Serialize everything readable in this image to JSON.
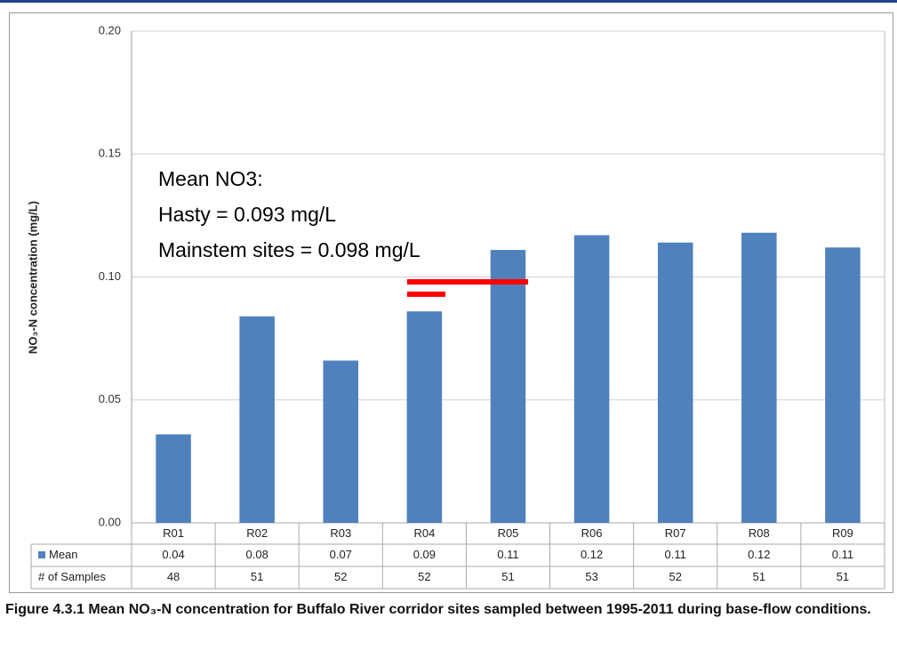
{
  "chart_data": {
    "type": "bar",
    "y_label": "NO₃-N concentration (mg/L)",
    "categories": [
      "R01",
      "R02",
      "R03",
      "R04",
      "R05",
      "R06",
      "R07",
      "R08",
      "R09"
    ],
    "series": [
      {
        "name": "Mean",
        "color": "#4f81bd",
        "values": [
          0.036,
          0.084,
          0.066,
          0.086,
          0.111,
          0.117,
          0.114,
          0.118,
          0.112
        ],
        "value_labels": [
          "0.04",
          "0.08",
          "0.07",
          "0.09",
          "0.11",
          "0.12",
          "0.11",
          "0.12",
          "0.11"
        ]
      }
    ],
    "samples": {
      "name": "# of Samples",
      "values": [
        48,
        51,
        52,
        52,
        51,
        53,
        52,
        51,
        51
      ]
    },
    "ylim": [
      0,
      0.2
    ],
    "yticks": [
      {
        "value": 0,
        "label": "0.00"
      },
      0.05,
      {
        "value": 0.1,
        "label": "0.10"
      },
      0.15,
      {
        "value": 0.2,
        "label": "0.20"
      }
    ],
    "grid": true,
    "annotation": [
      "Mean NO3:",
      "Hasty = 0.093 mg/L",
      "Mainstem sites = 0.098 mg/L"
    ],
    "reference_lines": [
      {
        "value": 0.098,
        "color": "#ff0000"
      },
      {
        "value": 0.093,
        "color": "#ff0000"
      }
    ],
    "caption": "Figure 4.3.1 Mean NO₃-N concentration for Buffalo River corridor sites sampled between 1995-2011 during base-flow conditions."
  }
}
